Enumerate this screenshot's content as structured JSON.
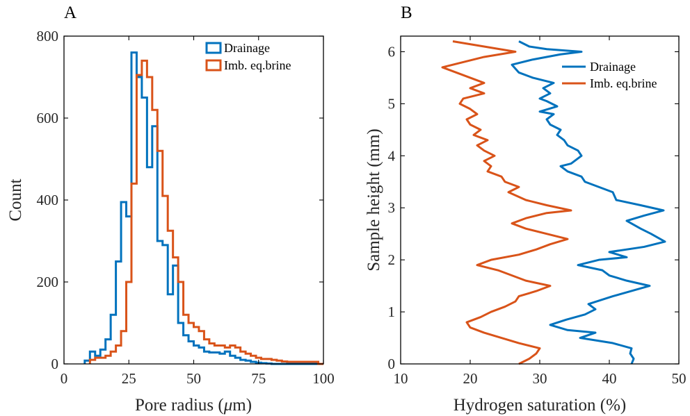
{
  "colors": {
    "drainage": "#0072BD",
    "imbibition": "#D95319"
  },
  "chart_data": [
    {
      "type": "histogram",
      "panel_label": "A",
      "xlabel": "Pore radius (",
      "xlabel_mu": "μ",
      "xlabel_tail": "m)",
      "ylabel": "Count",
      "xlim": [
        0,
        100
      ],
      "ylim": [
        0,
        800
      ],
      "xticks": [
        0,
        25,
        50,
        75,
        100
      ],
      "yticks": [
        0,
        200,
        400,
        600,
        800
      ],
      "xtick_labels": [
        "0",
        "25",
        "50",
        "75",
        "100"
      ],
      "ytick_labels": [
        "0",
        "200",
        "400",
        "600",
        "800"
      ],
      "legend_position": "top-right",
      "bin_width": 2,
      "series": [
        {
          "name": "Drainage",
          "bin_start": 8,
          "counts": [
            8,
            30,
            20,
            35,
            60,
            120,
            250,
            395,
            360,
            760,
            700,
            650,
            480,
            580,
            300,
            290,
            170,
            240,
            100,
            70,
            55,
            45,
            40,
            30,
            28,
            28,
            25,
            30,
            20,
            15,
            10,
            8,
            5,
            3,
            2,
            1,
            0,
            0,
            0,
            0,
            0,
            0,
            0,
            0,
            0,
            0
          ]
        },
        {
          "name": "Imb. eq.brine",
          "bin_start": 10,
          "counts": [
            10,
            15,
            15,
            20,
            30,
            45,
            80,
            200,
            440,
            705,
            740,
            700,
            620,
            520,
            410,
            325,
            260,
            200,
            120,
            100,
            90,
            80,
            60,
            50,
            45,
            45,
            40,
            45,
            40,
            30,
            25,
            20,
            15,
            12,
            12,
            10,
            8,
            6,
            5,
            5,
            5,
            5,
            5,
            5,
            0
          ]
        }
      ]
    },
    {
      "type": "line",
      "panel_label": "B",
      "xlabel": "Hydrogen saturation (%)",
      "ylabel": "Sample height (mm)",
      "xlim": [
        10,
        50
      ],
      "ylim": [
        0,
        6.3
      ],
      "xticks": [
        10,
        20,
        30,
        40,
        50
      ],
      "yticks": [
        0,
        1,
        2,
        3,
        4,
        5,
        6
      ],
      "xtick_labels": [
        "10",
        "20",
        "30",
        "40",
        "50"
      ],
      "ytick_labels": [
        "0",
        "1",
        "2",
        "3",
        "4",
        "5",
        "6"
      ],
      "legend_position": "top-right",
      "series": [
        {
          "name": "Drainage",
          "points": [
            [
              43.2,
              0.0
            ],
            [
              43.5,
              0.1
            ],
            [
              43.0,
              0.2
            ],
            [
              43.2,
              0.3
            ],
            [
              40.5,
              0.4
            ],
            [
              35.8,
              0.5
            ],
            [
              38.0,
              0.6
            ],
            [
              34.0,
              0.65
            ],
            [
              31.5,
              0.75
            ],
            [
              33.8,
              0.85
            ],
            [
              36.5,
              0.95
            ],
            [
              38.0,
              1.05
            ],
            [
              37.0,
              1.15
            ],
            [
              40.5,
              1.3
            ],
            [
              45.8,
              1.5
            ],
            [
              42.5,
              1.6
            ],
            [
              40.0,
              1.7
            ],
            [
              39.0,
              1.8
            ],
            [
              35.5,
              1.9
            ],
            [
              38.5,
              2.0
            ],
            [
              42.5,
              2.05
            ],
            [
              40.0,
              2.15
            ],
            [
              45.0,
              2.25
            ],
            [
              48.0,
              2.35
            ],
            [
              46.0,
              2.5
            ],
            [
              44.5,
              2.6
            ],
            [
              42.5,
              2.75
            ],
            [
              45.0,
              2.85
            ],
            [
              47.8,
              2.95
            ],
            [
              44.5,
              3.05
            ],
            [
              41.0,
              3.15
            ],
            [
              40.5,
              3.3
            ],
            [
              38.5,
              3.4
            ],
            [
              36.5,
              3.5
            ],
            [
              36.0,
              3.6
            ],
            [
              34.0,
              3.7
            ],
            [
              33.0,
              3.8
            ],
            [
              34.5,
              3.85
            ],
            [
              36.0,
              4.0
            ],
            [
              35.5,
              4.1
            ],
            [
              34.0,
              4.2
            ],
            [
              33.5,
              4.3
            ],
            [
              32.5,
              4.4
            ],
            [
              33.0,
              4.5
            ],
            [
              31.5,
              4.6
            ],
            [
              31.0,
              4.7
            ],
            [
              32.0,
              4.8
            ],
            [
              30.0,
              4.85
            ],
            [
              32.5,
              4.95
            ],
            [
              31.0,
              5.05
            ],
            [
              30.0,
              5.1
            ],
            [
              31.5,
              5.2
            ],
            [
              30.5,
              5.3
            ],
            [
              32.0,
              5.4
            ],
            [
              29.0,
              5.5
            ],
            [
              27.0,
              5.6
            ],
            [
              26.0,
              5.75
            ],
            [
              29.0,
              5.85
            ],
            [
              33.0,
              5.95
            ],
            [
              36.0,
              6.0
            ],
            [
              31.0,
              6.05
            ],
            [
              28.5,
              6.1
            ],
            [
              27.0,
              6.2
            ]
          ]
        },
        {
          "name": "Imb. eq.brine",
          "points": [
            [
              27.0,
              0.0
            ],
            [
              28.5,
              0.1
            ],
            [
              29.5,
              0.2
            ],
            [
              30.0,
              0.3
            ],
            [
              27.0,
              0.4
            ],
            [
              24.5,
              0.5
            ],
            [
              22.0,
              0.6
            ],
            [
              20.0,
              0.7
            ],
            [
              19.5,
              0.8
            ],
            [
              21.5,
              0.9
            ],
            [
              23.0,
              1.0
            ],
            [
              25.0,
              1.1
            ],
            [
              26.5,
              1.2
            ],
            [
              27.0,
              1.3
            ],
            [
              29.5,
              1.4
            ],
            [
              31.5,
              1.5
            ],
            [
              28.0,
              1.6
            ],
            [
              26.0,
              1.7
            ],
            [
              24.0,
              1.8
            ],
            [
              21.0,
              1.9
            ],
            [
              23.0,
              2.0
            ],
            [
              27.0,
              2.1
            ],
            [
              29.5,
              2.2
            ],
            [
              31.5,
              2.3
            ],
            [
              34.0,
              2.4
            ],
            [
              31.0,
              2.5
            ],
            [
              28.0,
              2.6
            ],
            [
              26.0,
              2.7
            ],
            [
              28.0,
              2.8
            ],
            [
              31.0,
              2.9
            ],
            [
              34.5,
              2.95
            ],
            [
              31.0,
              3.05
            ],
            [
              28.0,
              3.15
            ],
            [
              25.5,
              3.3
            ],
            [
              27.0,
              3.4
            ],
            [
              25.0,
              3.5
            ],
            [
              24.5,
              3.6
            ],
            [
              22.5,
              3.7
            ],
            [
              23.0,
              3.8
            ],
            [
              22.0,
              3.9
            ],
            [
              23.5,
              4.0
            ],
            [
              22.0,
              4.1
            ],
            [
              21.0,
              4.2
            ],
            [
              22.5,
              4.3
            ],
            [
              20.5,
              4.4
            ],
            [
              21.5,
              4.5
            ],
            [
              20.0,
              4.6
            ],
            [
              19.5,
              4.7
            ],
            [
              21.0,
              4.8
            ],
            [
              20.0,
              4.9
            ],
            [
              18.5,
              5.0
            ],
            [
              19.0,
              5.1
            ],
            [
              22.0,
              5.2
            ],
            [
              20.0,
              5.3
            ],
            [
              22.0,
              5.4
            ],
            [
              20.0,
              5.5
            ],
            [
              18.0,
              5.6
            ],
            [
              16.0,
              5.7
            ],
            [
              19.0,
              5.8
            ],
            [
              22.0,
              5.9
            ],
            [
              26.5,
              6.0
            ],
            [
              22.0,
              6.1
            ],
            [
              17.5,
              6.2
            ]
          ]
        }
      ]
    }
  ]
}
